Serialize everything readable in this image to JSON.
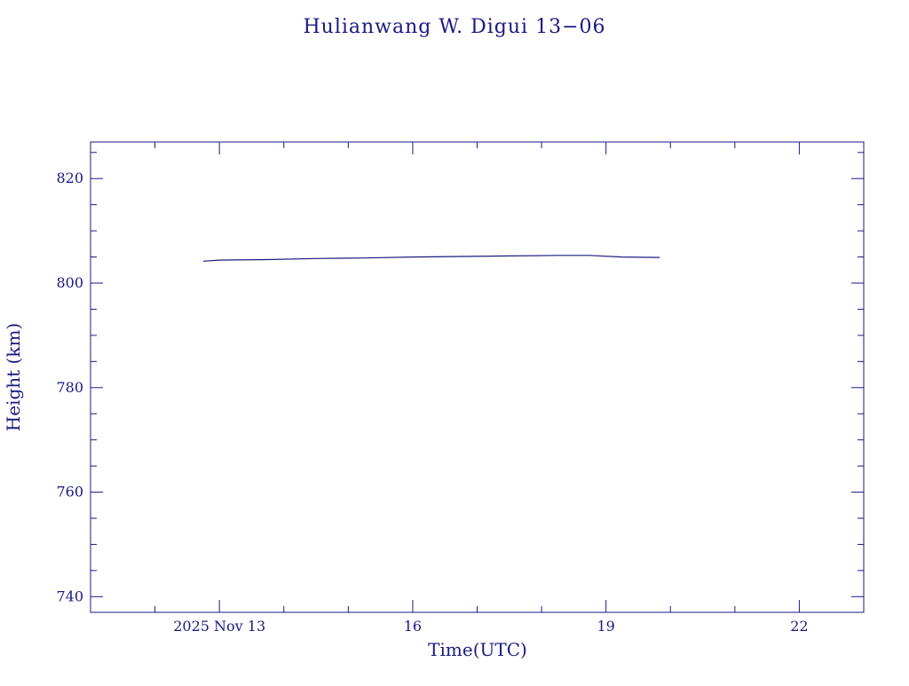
{
  "colors": {
    "ink": "#1a1a80",
    "background": "#ffffff"
  },
  "chart_data": {
    "type": "line",
    "title": "Hulianwang W. Digui 13−06",
    "xlabel": "Time(UTC)",
    "ylabel": "Height (km)",
    "xlim": [
      "2025-11-11T00:00Z",
      "2025-11-23T00:00Z"
    ],
    "ylim": [
      737,
      827
    ],
    "x_ticks": [
      {
        "value": "2025-11-13T00:00Z",
        "label": "2025 Nov 13"
      },
      {
        "value": "2025-11-16T00:00Z",
        "label": "16"
      },
      {
        "value": "2025-11-19T00:00Z",
        "label": "19"
      },
      {
        "value": "2025-11-22T00:00Z",
        "label": "22"
      }
    ],
    "y_ticks": [
      {
        "value": 740,
        "label": "740"
      },
      {
        "value": 760,
        "label": "760"
      },
      {
        "value": 780,
        "label": "780"
      },
      {
        "value": 800,
        "label": "800"
      },
      {
        "value": 820,
        "label": "820"
      }
    ],
    "grid": false,
    "series": [
      {
        "x": [
          "2025-11-12T18:00Z",
          "2025-11-13T00:00Z",
          "2025-11-13T18:00Z",
          "2025-11-14T12:00Z",
          "2025-11-15T06:00Z",
          "2025-11-16T00:00Z",
          "2025-11-16T18:00Z",
          "2025-11-17T12:00Z",
          "2025-11-18T06:00Z",
          "2025-11-18T18:00Z",
          "2025-11-19T06:00Z",
          "2025-11-19T20:00Z"
        ],
        "y": [
          804.2,
          804.4,
          804.5,
          804.7,
          804.8,
          805.0,
          805.1,
          805.2,
          805.3,
          805.3,
          805.0,
          804.9
        ]
      }
    ]
  }
}
